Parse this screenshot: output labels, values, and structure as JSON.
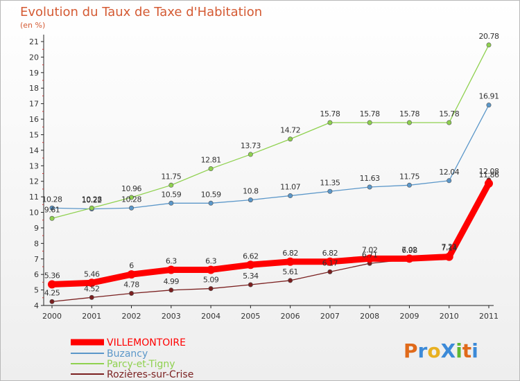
{
  "chart_data": {
    "type": "line",
    "title": "Evolution du Taux de Taxe d'Habitation",
    "ylabel": "(en %)",
    "x": [
      "2000",
      "2001",
      "2002",
      "2003",
      "2004",
      "2005",
      "2006",
      "2007",
      "2008",
      "2009",
      "2010",
      "2011"
    ],
    "ylim": [
      4,
      21
    ],
    "yticks": [
      4,
      5,
      6,
      7,
      8,
      9,
      10,
      11,
      12,
      13,
      14,
      15,
      16,
      17,
      18,
      19,
      20,
      21
    ],
    "grid": false,
    "legend": "bottom-left",
    "series": [
      {
        "name": "VILLEMONTOIRE",
        "color": "#ff0000",
        "values": [
          5.36,
          5.46,
          6,
          6.3,
          6.3,
          6.62,
          6.82,
          6.82,
          7.02,
          7.02,
          7.14,
          11.86
        ],
        "labels": [
          "5.36",
          "5.46",
          "6",
          "6.3",
          "6.3",
          "6.62",
          "6.82",
          "6.82",
          "7.02",
          "7.02",
          "7.14",
          "11.86"
        ]
      },
      {
        "name": "Buzancy",
        "color": "#5b97c9",
        "values": [
          10.28,
          10.22,
          10.28,
          10.59,
          10.59,
          10.8,
          11.07,
          11.35,
          11.63,
          11.75,
          12.04,
          16.91
        ],
        "labels": [
          "10.28",
          "10.22",
          "10.28",
          "10.59",
          "10.59",
          "10.8",
          "11.07",
          "11.35",
          "11.63",
          "11.75",
          "12.04",
          "16.91"
        ]
      },
      {
        "name": "Parcy-et-Tigny",
        "color": "#8fd14f",
        "values": [
          9.61,
          10.28,
          10.96,
          11.75,
          12.81,
          13.73,
          14.72,
          15.78,
          15.78,
          15.78,
          15.78,
          20.78
        ],
        "labels": [
          "9.61",
          "10.28",
          "10.96",
          "11.75",
          "12.81",
          "13.73",
          "14.72",
          "15.78",
          "15.78",
          "15.78",
          "15.78",
          "20.78"
        ]
      },
      {
        "name": "Rozières-sur-Crise",
        "color": "#7a1f1f",
        "values": [
          4.25,
          4.52,
          4.78,
          4.99,
          5.09,
          5.34,
          5.61,
          6.17,
          6.71,
          6.98,
          7.21,
          12.08
        ],
        "labels": [
          "4.25",
          "4.52",
          "4.78",
          "4.99",
          "5.09",
          "5.34",
          "5.61",
          "6.17",
          "6.71",
          "6.98",
          "7.21",
          "12.08"
        ]
      }
    ]
  },
  "logo": {
    "text": "ProXiti",
    "letters": [
      "P",
      "r",
      "o",
      "X",
      "i",
      "t",
      "i"
    ],
    "colors": [
      "#e06a1a",
      "#3c8ad8",
      "#e8b020",
      "#3c8ad8",
      "#5fb832",
      "#e06a1a",
      "#3c8ad8"
    ]
  }
}
